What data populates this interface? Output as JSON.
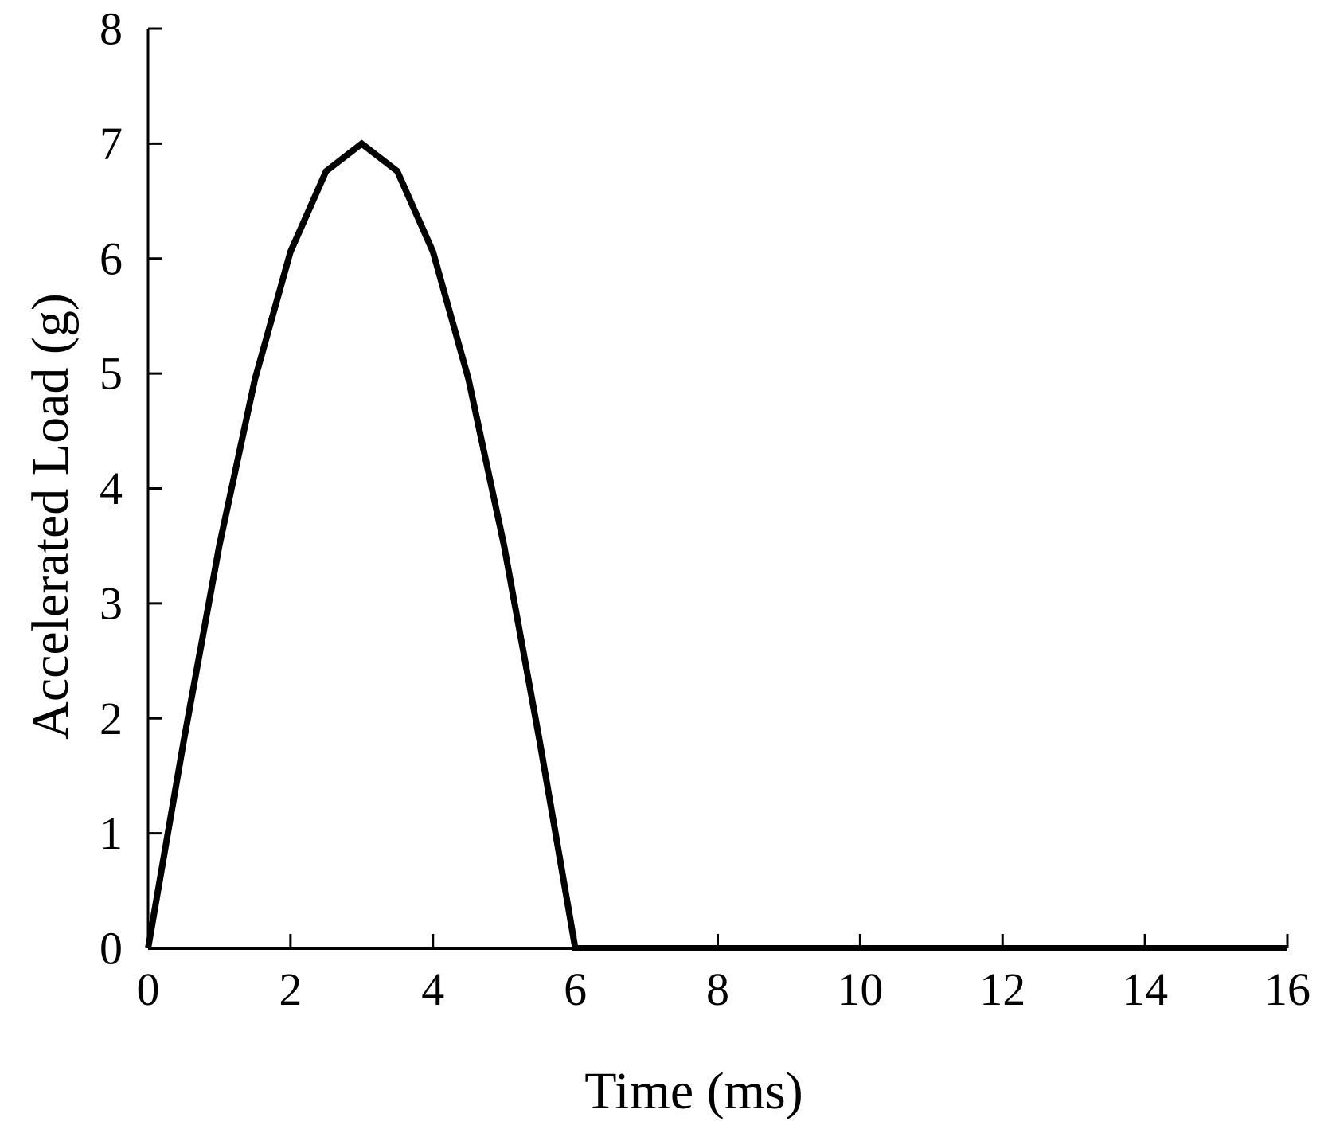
{
  "chart_data": {
    "type": "line",
    "title": "",
    "xlabel": "Time (ms)",
    "ylabel": "Accelerated Load (g)",
    "xlim": [
      0,
      16
    ],
    "ylim": [
      0,
      8
    ],
    "x_ticks": [
      0,
      2,
      4,
      6,
      8,
      10,
      12,
      14,
      16
    ],
    "y_ticks": [
      0,
      1,
      2,
      3,
      4,
      5,
      6,
      7,
      8
    ],
    "grid": false,
    "legend": "none",
    "colors": {
      "line": "#000000",
      "axis": "#000000"
    },
    "series": [
      {
        "x": [
          0,
          0.5,
          1,
          1.5,
          2,
          2.5,
          3,
          3.5,
          4,
          4.5,
          5,
          5.5,
          6,
          16
        ],
        "y": [
          0,
          1.8,
          3.5,
          4.95,
          6.06,
          6.76,
          7.0,
          6.76,
          6.06,
          4.95,
          3.5,
          1.8,
          0,
          0
        ]
      }
    ]
  }
}
